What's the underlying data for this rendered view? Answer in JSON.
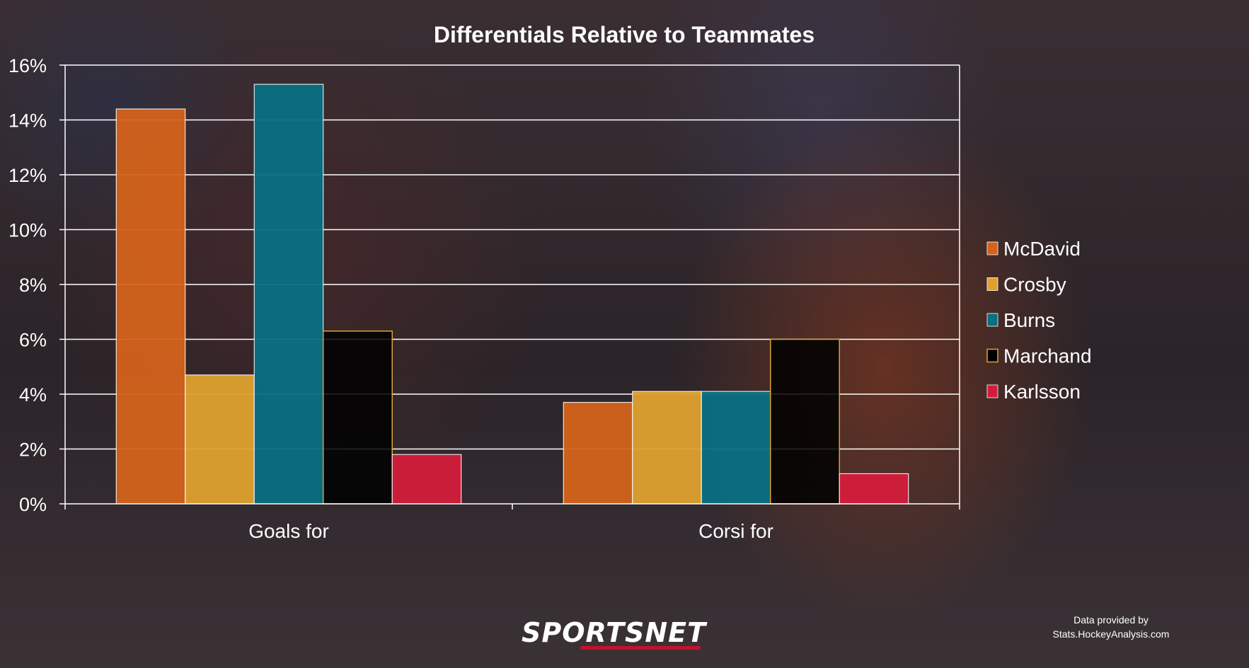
{
  "brand": "SPORTSNET",
  "credit": [
    "Data provided by",
    "Stats.HockeyAnalysis.com"
  ],
  "chart_data": {
    "type": "bar",
    "title": "Differentials Relative to Teammates",
    "categories": [
      "Goals for",
      "Corsi for"
    ],
    "ylim": [
      0,
      16
    ],
    "ytick_values": [
      0,
      2,
      4,
      6,
      8,
      10,
      12,
      14,
      16
    ],
    "ytick_labels": [
      "0%",
      "2%",
      "4%",
      "6%",
      "8%",
      "10%",
      "12%",
      "14%",
      "16%"
    ],
    "grid": true,
    "legend_position": "right",
    "series": [
      {
        "name": "McDavid",
        "color": "#d4621b",
        "values": [
          14.4,
          3.7
        ]
      },
      {
        "name": "Crosby",
        "color": "#dea12f",
        "values": [
          4.7,
          4.1
        ]
      },
      {
        "name": "Burns",
        "color": "#0a6f82",
        "values": [
          15.3,
          4.1
        ]
      },
      {
        "name": "Marchand",
        "color": "#000000",
        "stroke": "#d9a334",
        "values": [
          6.3,
          6.0
        ]
      },
      {
        "name": "Karlsson",
        "color": "#d31c3b",
        "values": [
          1.8,
          1.1
        ]
      }
    ]
  }
}
